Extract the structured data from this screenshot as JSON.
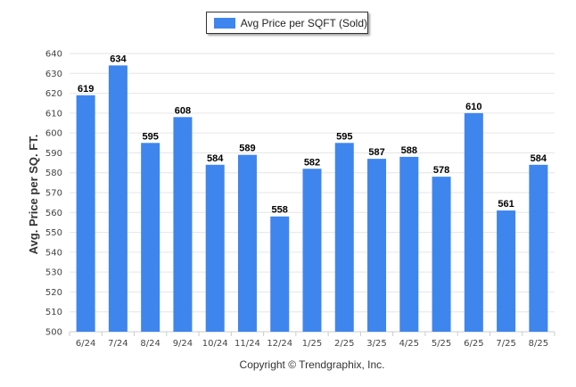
{
  "copyright": "Copyright © Trendgraphix, Inc.",
  "colors": {
    "bar": "#3f85ee",
    "grid": "#e6e6e6",
    "axis": "#cccccc"
  },
  "chart_data": {
    "type": "bar",
    "categories": [
      "6/24",
      "7/24",
      "8/24",
      "9/24",
      "10/24",
      "11/24",
      "12/24",
      "1/25",
      "2/25",
      "3/25",
      "4/25",
      "5/25",
      "6/25",
      "7/25",
      "8/25"
    ],
    "series": [
      {
        "name": "Avg Price per SQFT (Sold)",
        "values": [
          619,
          634,
          595,
          608,
          584,
          589,
          558,
          582,
          595,
          587,
          588,
          578,
          610,
          561,
          584
        ]
      }
    ],
    "ylabel": "Avg. Price per SQ. FT.",
    "xlabel": "",
    "ylim": [
      500,
      640
    ],
    "ytick_step": 10,
    "grid": true,
    "legend_position": "top-center"
  }
}
